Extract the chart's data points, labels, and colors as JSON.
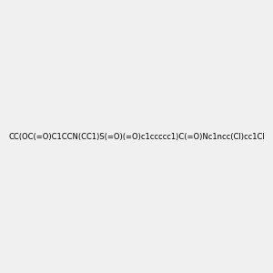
{
  "smiles": "CC(OC(=O)C1CCN(CC1)S(=O)(=O)c1ccccc1)C(=O)Nc1ncc(Cl)cc1Cl",
  "image_size": 300,
  "background_color": "#f0f0f0",
  "title": ""
}
